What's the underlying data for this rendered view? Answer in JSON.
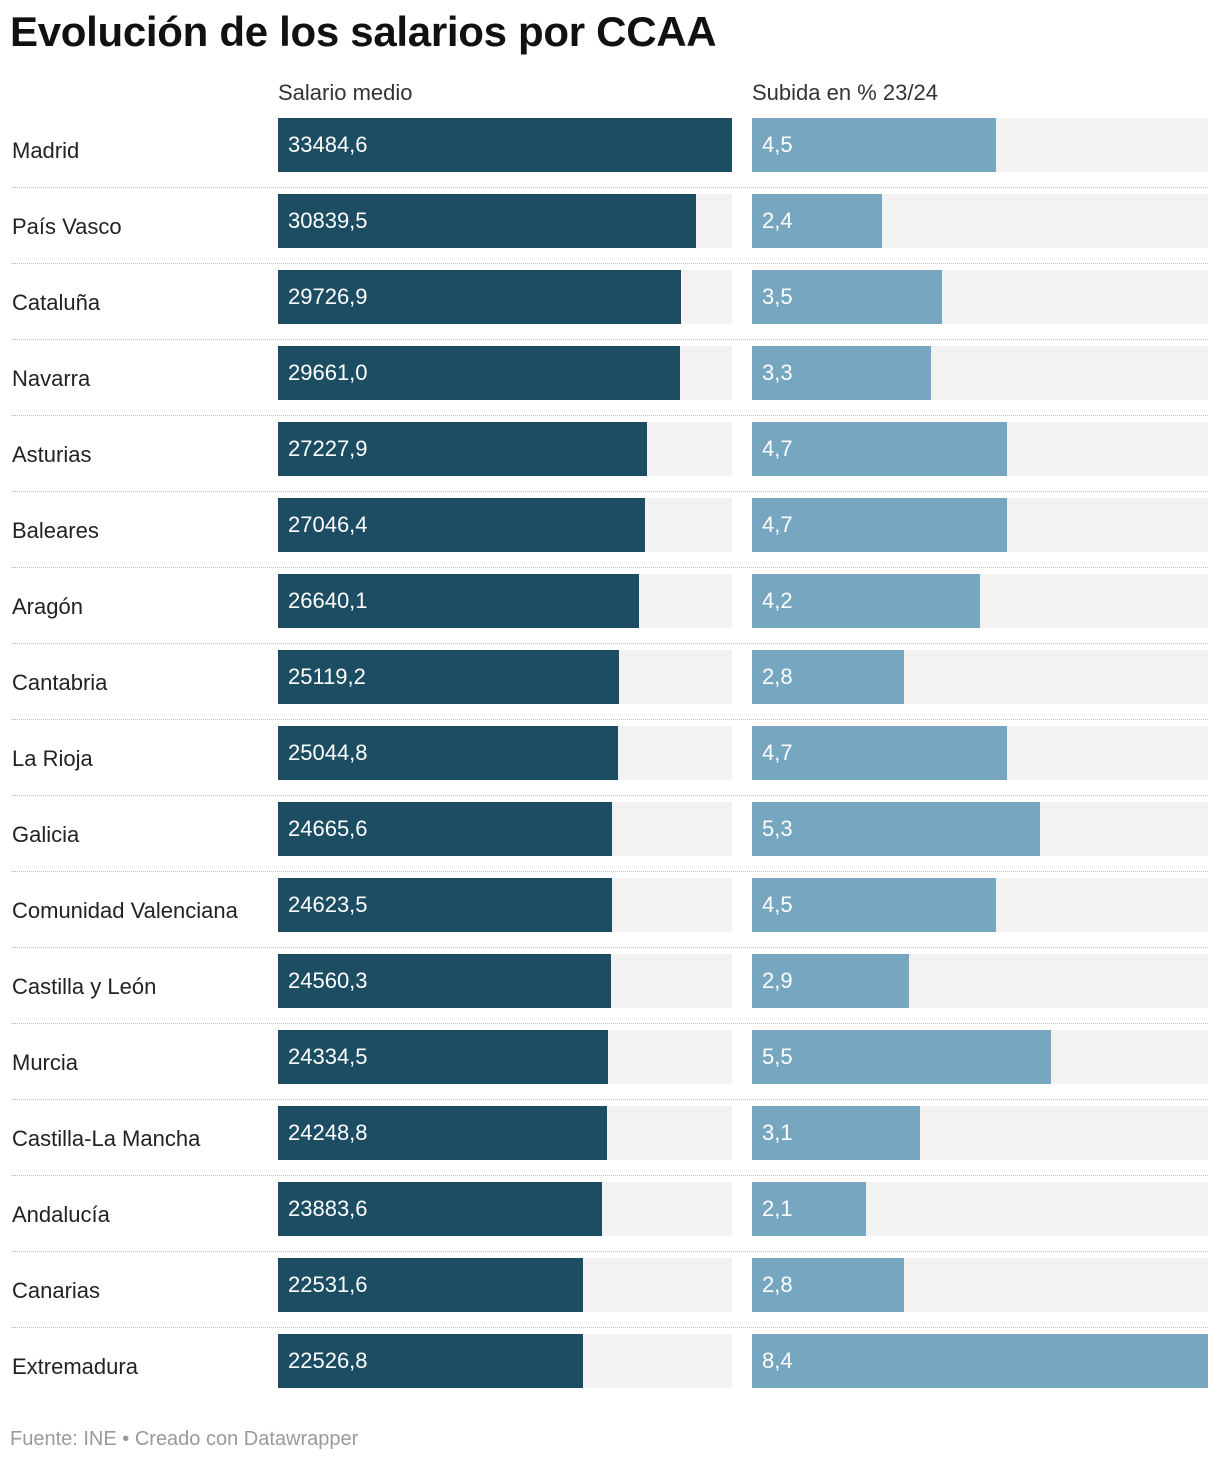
{
  "chart_data": {
    "type": "bar",
    "title": "Evolución de los salarios por CCAA",
    "categories": [
      "Madrid",
      "País Vasco",
      "Cataluña",
      "Navarra",
      "Asturias",
      "Baleares",
      "Aragón",
      "Cantabria",
      "La Rioja",
      "Galicia",
      "Comunidad Valenciana",
      "Castilla y León",
      "Murcia",
      "Castilla-La Mancha",
      "Andalucía",
      "Canarias",
      "Extremadura"
    ],
    "series": [
      {
        "name": "Salario medio",
        "color": "#1c4d63",
        "values": [
          33484.6,
          30839.5,
          29726.9,
          29661.0,
          27227.9,
          27046.4,
          26640.1,
          25119.2,
          25044.8,
          24665.6,
          24623.5,
          24560.3,
          24334.5,
          24248.8,
          23883.6,
          22531.6,
          22526.8
        ],
        "labels": [
          "33484,6",
          "30839,5",
          "29726,9",
          "29661,0",
          "27227,9",
          "27046,4",
          "26640,1",
          "25119,2",
          "25044,8",
          "24665,6",
          "24623,5",
          "24560,3",
          "24334,5",
          "24248,8",
          "23883,6",
          "22531,6",
          "22526,8"
        ],
        "max": 33484.6
      },
      {
        "name": "Subida en % 23/24",
        "color": "#76a6c0",
        "values": [
          4.5,
          2.4,
          3.5,
          3.3,
          4.7,
          4.7,
          4.2,
          2.8,
          4.7,
          5.3,
          4.5,
          2.9,
          5.5,
          3.1,
          2.1,
          2.8,
          8.4
        ],
        "labels": [
          "4,5",
          "2,4",
          "3,5",
          "3,3",
          "4,7",
          "4,7",
          "4,2",
          "2,8",
          "4,7",
          "5,3",
          "4,5",
          "2,9",
          "5,5",
          "3,1",
          "2,1",
          "2,8",
          "8,4"
        ],
        "max": 8.4
      }
    ],
    "track_color": "#f2f2f2",
    "source": "Fuente: INE • Creado con Datawrapper"
  }
}
